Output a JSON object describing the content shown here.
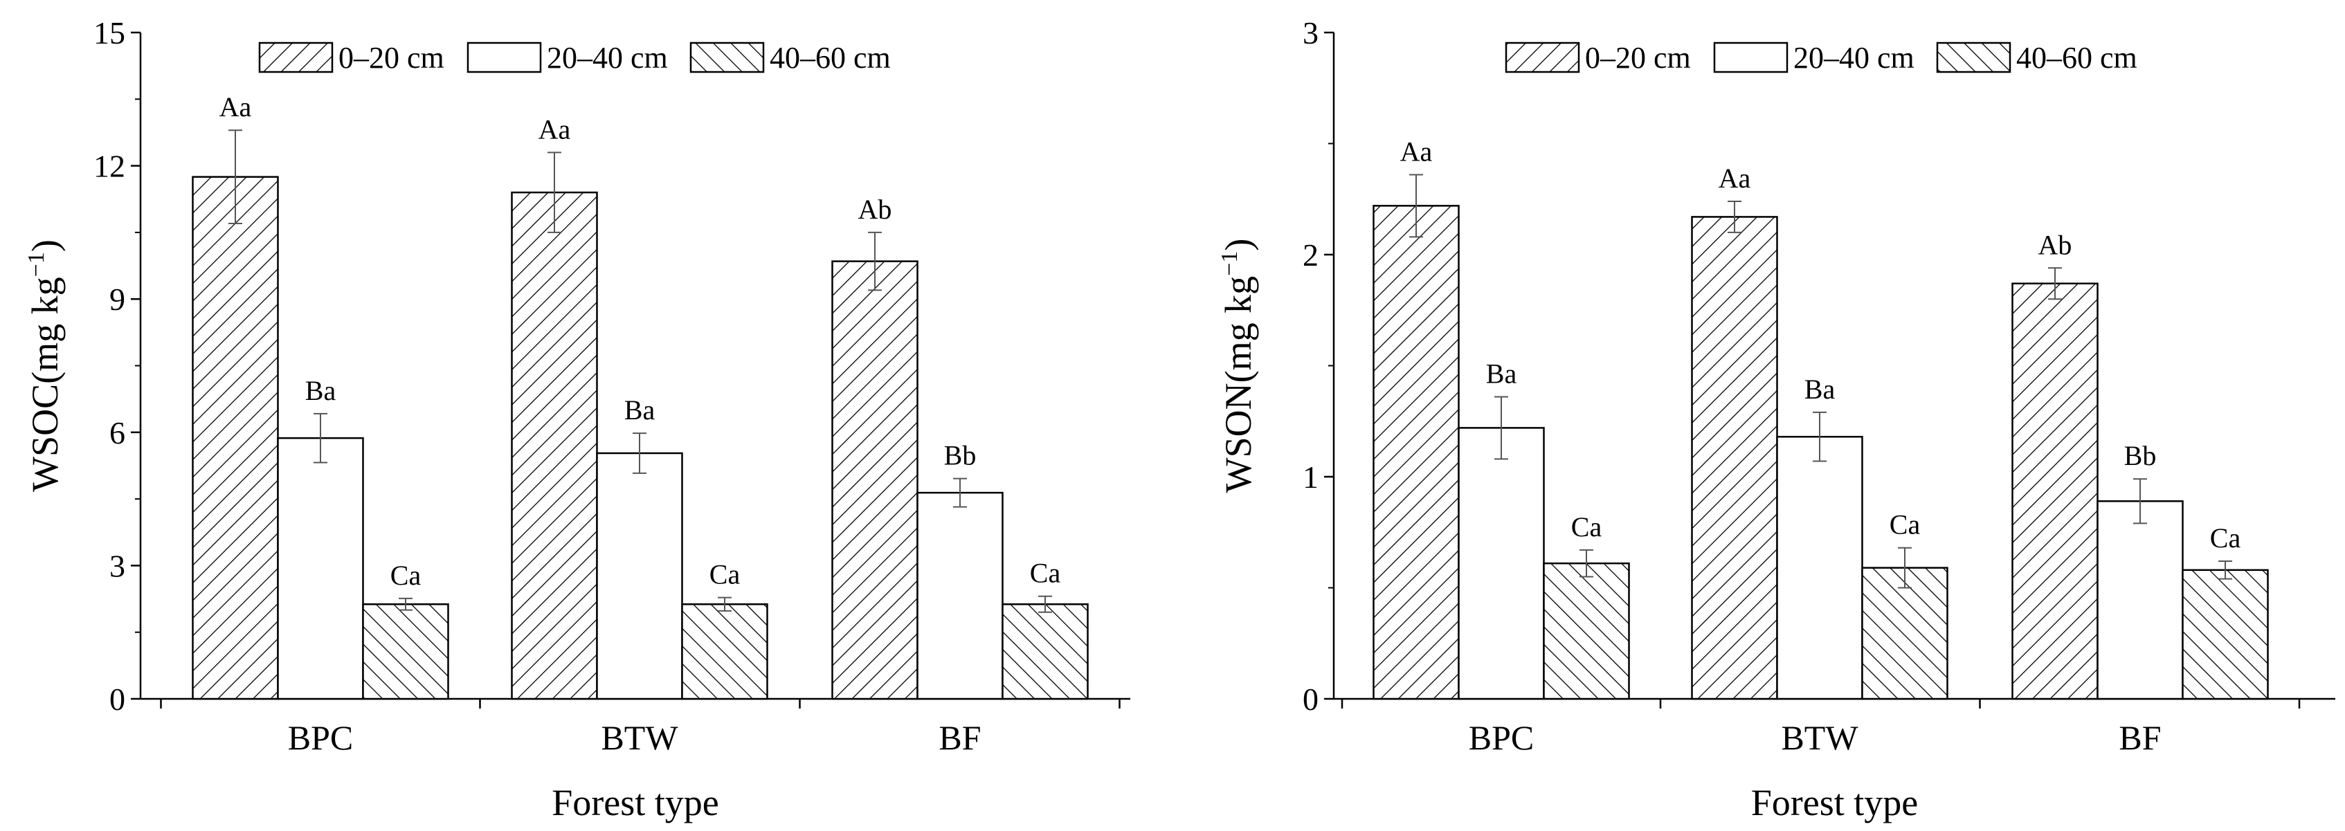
{
  "chart_data": [
    {
      "type": "bar",
      "xlabel": "Forest type",
      "ylabel": "WSOC(mg kg",
      "ylabel_sup": "−1",
      "ylabel_close": ")",
      "ylim": [
        0,
        15
      ],
      "yticks": [
        0,
        3,
        6,
        9,
        12,
        15
      ],
      "categories": [
        "BPC",
        "BTW",
        "BF"
      ],
      "legend_position": "top",
      "grid": false,
      "series": [
        {
          "name": "0–20 cm",
          "pattern": "hatch-right",
          "values": [
            11.75,
            11.4,
            9.85
          ],
          "errors": [
            1.05,
            0.9,
            0.65
          ],
          "labels": [
            "Aa",
            "Aa",
            "Ab"
          ]
        },
        {
          "name": "20–40 cm",
          "pattern": "white",
          "values": [
            5.87,
            5.53,
            4.64
          ],
          "errors": [
            0.55,
            0.45,
            0.32
          ],
          "labels": [
            "Ba",
            "Ba",
            "Bb"
          ]
        },
        {
          "name": "40–60 cm",
          "pattern": "hatch-left",
          "values": [
            2.13,
            2.13,
            2.13
          ],
          "errors": [
            0.13,
            0.15,
            0.18
          ],
          "labels": [
            "Ca",
            "Ca",
            "Ca"
          ]
        }
      ]
    },
    {
      "type": "bar",
      "xlabel": "Forest type",
      "ylabel": "WSON(mg kg",
      "ylabel_sup": "−1",
      "ylabel_close": ")",
      "ylim": [
        0,
        3
      ],
      "yticks": [
        0,
        1,
        2,
        3
      ],
      "categories": [
        "BPC",
        "BTW",
        "BF"
      ],
      "legend_position": "top",
      "grid": false,
      "series": [
        {
          "name": "0–20 cm",
          "pattern": "hatch-right",
          "values": [
            2.22,
            2.17,
            1.87
          ],
          "errors": [
            0.14,
            0.07,
            0.07
          ],
          "labels": [
            "Aa",
            "Aa",
            "Ab"
          ]
        },
        {
          "name": "20–40 cm",
          "pattern": "white",
          "values": [
            1.22,
            1.18,
            0.89
          ],
          "errors": [
            0.14,
            0.11,
            0.1
          ],
          "labels": [
            "Ba",
            "Ba",
            "Bb"
          ]
        },
        {
          "name": "40–60 cm",
          "pattern": "hatch-left",
          "values": [
            0.61,
            0.59,
            0.58
          ],
          "errors": [
            0.06,
            0.09,
            0.04
          ],
          "labels": [
            "Ca",
            "Ca",
            "Ca"
          ]
        }
      ]
    }
  ]
}
